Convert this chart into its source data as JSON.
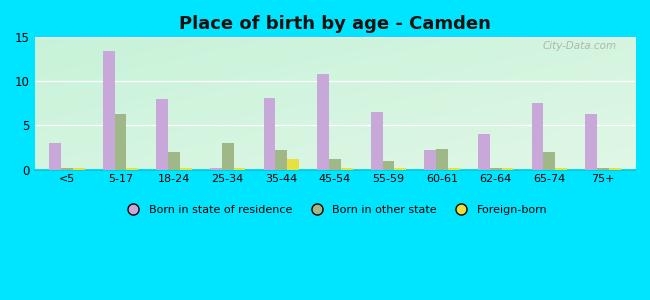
{
  "title": "Place of birth by age - Camden",
  "categories": [
    "<5",
    "5-17",
    "18-24",
    "25-34",
    "35-44",
    "45-54",
    "55-59",
    "60-61",
    "62-64",
    "65-74",
    "75+"
  ],
  "born_in_state": [
    3.0,
    13.5,
    8.0,
    0.2,
    8.1,
    10.8,
    6.5,
    2.2,
    4.0,
    7.5,
    6.3
  ],
  "born_other_state": [
    0.2,
    6.3,
    2.0,
    3.0,
    2.2,
    1.2,
    1.0,
    2.3,
    0.2,
    2.0,
    0.2
  ],
  "foreign_born": [
    0.15,
    0.15,
    0.15,
    0.15,
    1.2,
    0.15,
    0.15,
    0.15,
    0.15,
    0.15,
    0.15
  ],
  "ylim": [
    0,
    15
  ],
  "yticks": [
    0,
    5,
    10,
    15
  ],
  "bar_width": 0.22,
  "color_state": "#c8a8d8",
  "color_other": "#a0b888",
  "color_foreign": "#e8e040",
  "bg_outer": "#00e5ff",
  "legend_labels": [
    "Born in state of residence",
    "Born in other state",
    "Foreign-born"
  ],
  "title_fontsize": 13,
  "watermark": "City-Data.com"
}
